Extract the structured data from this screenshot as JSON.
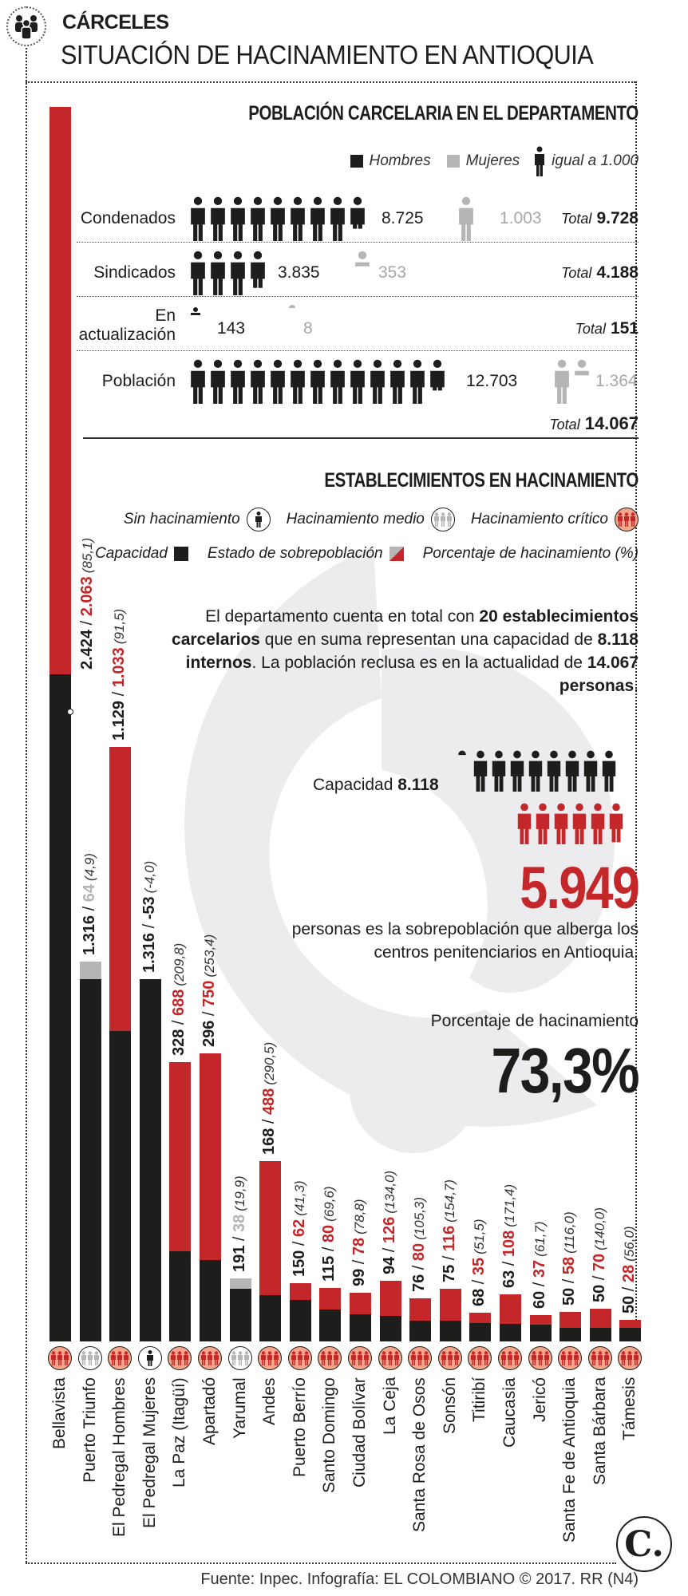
{
  "header": {
    "icon": "people-group-icon",
    "kicker": "CÁRCELES",
    "title": "SITUACIÓN DE HACINAMIENTO EN ANTIOQUIA"
  },
  "population": {
    "title": "POBLACIÓN CARCELARIA EN EL DEPARTAMENTO",
    "legend": {
      "hombres": "Hombres",
      "mujeres": "Mujeres",
      "unit": "igual a 1.000"
    },
    "rows": [
      {
        "label": "Condenados",
        "men": "8.725",
        "women": "1.003",
        "total_label": "Total",
        "total": "9.728"
      },
      {
        "label": "Sindicados",
        "men": "3.835",
        "women": "353",
        "total_label": "Total",
        "total": "4.188"
      },
      {
        "label": "En actualización",
        "label_line1": "En",
        "label_line2": "actualización",
        "men": "143",
        "women": "8",
        "total_label": "Total",
        "total": "151"
      },
      {
        "label": "Población",
        "men": "12.703",
        "women": "1.364",
        "total_label": "Total",
        "total": "14.067"
      }
    ]
  },
  "establishments": {
    "title": "ESTABLECIMIENTOS EN HACINAMIENTO",
    "legend": {
      "sin": "Sin hacinamiento",
      "medio": "Hacinamiento medio",
      "critico": "Hacinamiento crítico",
      "capacidad": "Capacidad",
      "sobrepoblacion": "Estado de sobrepoblación",
      "porcentaje": "Porcentaje de hacinamiento (%)"
    },
    "paragraph": {
      "p1": "El departamento cuenta en total con ",
      "b1": "20 establecimientos carcelarios",
      "p2": " que en suma representan una capacidad de ",
      "b2": "8.118 internos",
      "p3": ". La población reclusa es en la actualidad de ",
      "b3": "14.067 personas",
      "p4": "."
    },
    "capacity": {
      "label": "Capacidad",
      "value": "8.118"
    },
    "overpopulation": {
      "value": "5.949",
      "text": "personas es la sobrepoblación que alberga los centros penitenciarios en Antioquia."
    },
    "percentage": {
      "label": "Porcentaje de hacinamiento",
      "value": "73,3%"
    }
  },
  "colors": {
    "capacity": "#1d1d1b",
    "overpopulation": "#c3272a",
    "medium": "#b5b5b5",
    "women": "#a7a7a7",
    "critical_icon_bg": "#f4a58a"
  },
  "chart_data": {
    "type": "bar",
    "title": "ESTABLECIMIENTOS EN HACINAMIENTO",
    "xlabel": "",
    "ylabel": "",
    "stacked": true,
    "categories": [
      "Bellavista",
      "Puerto Triunfo",
      "El Pedregal Hombres",
      "El Pedregal Mujeres",
      "La Paz (Itagüí)",
      "Apartadó",
      "Yarumal",
      "Andes",
      "Puerto Berrío",
      "Santo Domingo",
      "Ciudad Bolívar",
      "La Ceja",
      "Santa Rosa de Osos",
      "Sonsón",
      "Titiribí",
      "Caucasia",
      "Jericó",
      "Santa Fe de Antioquia",
      "Santa Bárbara",
      "Támesis"
    ],
    "series": [
      {
        "name": "Capacidad",
        "values": [
          2424,
          1316,
          1129,
          1316,
          328,
          296,
          191,
          168,
          150,
          115,
          99,
          94,
          76,
          75,
          68,
          63,
          60,
          50,
          50,
          50
        ]
      },
      {
        "name": "Estado de sobrepoblación",
        "values": [
          2063,
          64,
          1033,
          -53,
          688,
          750,
          38,
          488,
          62,
          80,
          78,
          126,
          80,
          116,
          35,
          108,
          37,
          58,
          70,
          28
        ]
      },
      {
        "name": "Porcentaje de hacinamiento (%)",
        "values": [
          85.1,
          4.9,
          91.5,
          -4.0,
          209.8,
          253.4,
          19.9,
          290.5,
          41.3,
          69.6,
          78.8,
          134.0,
          105.3,
          154.7,
          51.5,
          171.4,
          61.7,
          116.0,
          140.0,
          56.0
        ]
      }
    ],
    "status": [
      "critico",
      "medio",
      "critico",
      "sin",
      "critico",
      "critico",
      "medio",
      "critico",
      "critico",
      "critico",
      "critico",
      "critico",
      "critico",
      "critico",
      "critico",
      "critico",
      "critico",
      "critico",
      "critico",
      "critico"
    ],
    "labels": [
      {
        "cap": "2.424",
        "over": "2.063",
        "pct": "(85,1)"
      },
      {
        "cap": "1.316",
        "over": "64",
        "pct": "(4,9)"
      },
      {
        "cap": "1.129",
        "over": "1.033",
        "pct": "(91,5)"
      },
      {
        "cap": "1.316",
        "over": "-53",
        "pct": "(-4,0)"
      },
      {
        "cap": "328",
        "over": "688",
        "pct": "(209,8)"
      },
      {
        "cap": "296",
        "over": "750",
        "pct": "(253,4)"
      },
      {
        "cap": "191",
        "over": "38",
        "pct": "(19,9)"
      },
      {
        "cap": "168",
        "over": "488",
        "pct": "(290,5)"
      },
      {
        "cap": "150",
        "over": "62",
        "pct": "(41,3)"
      },
      {
        "cap": "115",
        "over": "80",
        "pct": "(69,6)"
      },
      {
        "cap": "99",
        "over": "78",
        "pct": "(78,8)"
      },
      {
        "cap": "94",
        "over": "126",
        "pct": "(134,0)"
      },
      {
        "cap": "76",
        "over": "80",
        "pct": "(105,3)"
      },
      {
        "cap": "75",
        "over": "116",
        "pct": "(154,7)"
      },
      {
        "cap": "68",
        "over": "35",
        "pct": "(51,5)"
      },
      {
        "cap": "63",
        "over": "108",
        "pct": "(171,4)"
      },
      {
        "cap": "60",
        "over": "37",
        "pct": "(61,7)"
      },
      {
        "cap": "50",
        "over": "58",
        "pct": "(116,0)"
      },
      {
        "cap": "50",
        "over": "70",
        "pct": "(140,0)"
      },
      {
        "cap": "50",
        "over": "28",
        "pct": "(56,0)"
      }
    ],
    "legend_position": "top",
    "grid": false,
    "population_pictogram": {
      "type": "pictogram",
      "unit": "1 icon = 1.000",
      "categories": [
        "Condenados",
        "Sindicados",
        "En actualización",
        "Población"
      ],
      "series": [
        {
          "name": "Hombres",
          "values": [
            8725,
            3835,
            143,
            12703
          ]
        },
        {
          "name": "Mujeres",
          "values": [
            1003,
            353,
            8,
            1364
          ]
        }
      ],
      "totals": [
        9728,
        4188,
        151,
        14067
      ]
    }
  },
  "footer": {
    "source": "Fuente: Inpec. Infografía: EL COLOMBIANO © 2017. RR (N4)",
    "logo": "C."
  }
}
